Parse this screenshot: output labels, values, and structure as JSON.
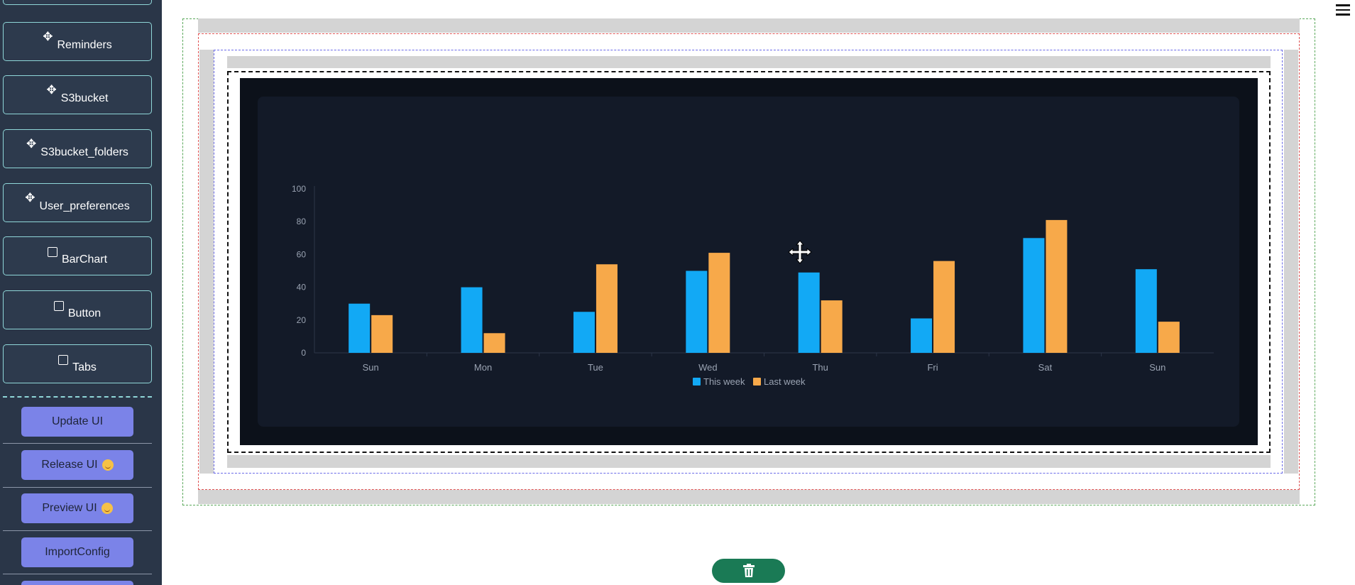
{
  "sidebar": {
    "components": [
      {
        "label": "Reminders",
        "icon": "move-icon"
      },
      {
        "label": "S3bucket",
        "icon": "move-icon"
      },
      {
        "label": "S3bucket_folders",
        "icon": "move-icon"
      },
      {
        "label": "User_preferences",
        "icon": "move-icon"
      },
      {
        "label": "BarChart",
        "icon": "square-icon"
      },
      {
        "label": "Button",
        "icon": "square-icon"
      },
      {
        "label": "Tabs",
        "icon": "square-icon"
      }
    ],
    "actions": [
      {
        "label": "Update UI"
      },
      {
        "label": "Release UI"
      },
      {
        "label": "Preview UI"
      },
      {
        "label": "ImportConfig"
      }
    ]
  },
  "colors": {
    "this_week": "#12a9f5",
    "last_week": "#f7a94a",
    "chart_bg": "#131a28",
    "sidebar_bg": "#2a3648",
    "action_button": "#7b83e8",
    "delete_button": "#1a7a55"
  },
  "chart_data": {
    "type": "bar",
    "categories": [
      "Sun",
      "Mon",
      "Tue",
      "Wed",
      "Thu",
      "Fri",
      "Sat",
      "Sun"
    ],
    "series": [
      {
        "name": "This week",
        "values": [
          30,
          40,
          25,
          50,
          49,
          21,
          70,
          51
        ]
      },
      {
        "name": "Last week",
        "values": [
          23,
          12,
          54,
          61,
          32,
          56,
          81,
          19
        ]
      }
    ],
    "ylim": [
      0,
      100
    ],
    "yticks": [
      "0",
      "20",
      "40",
      "60",
      "80",
      "100"
    ],
    "legend": "bottom-center",
    "grid": false
  }
}
